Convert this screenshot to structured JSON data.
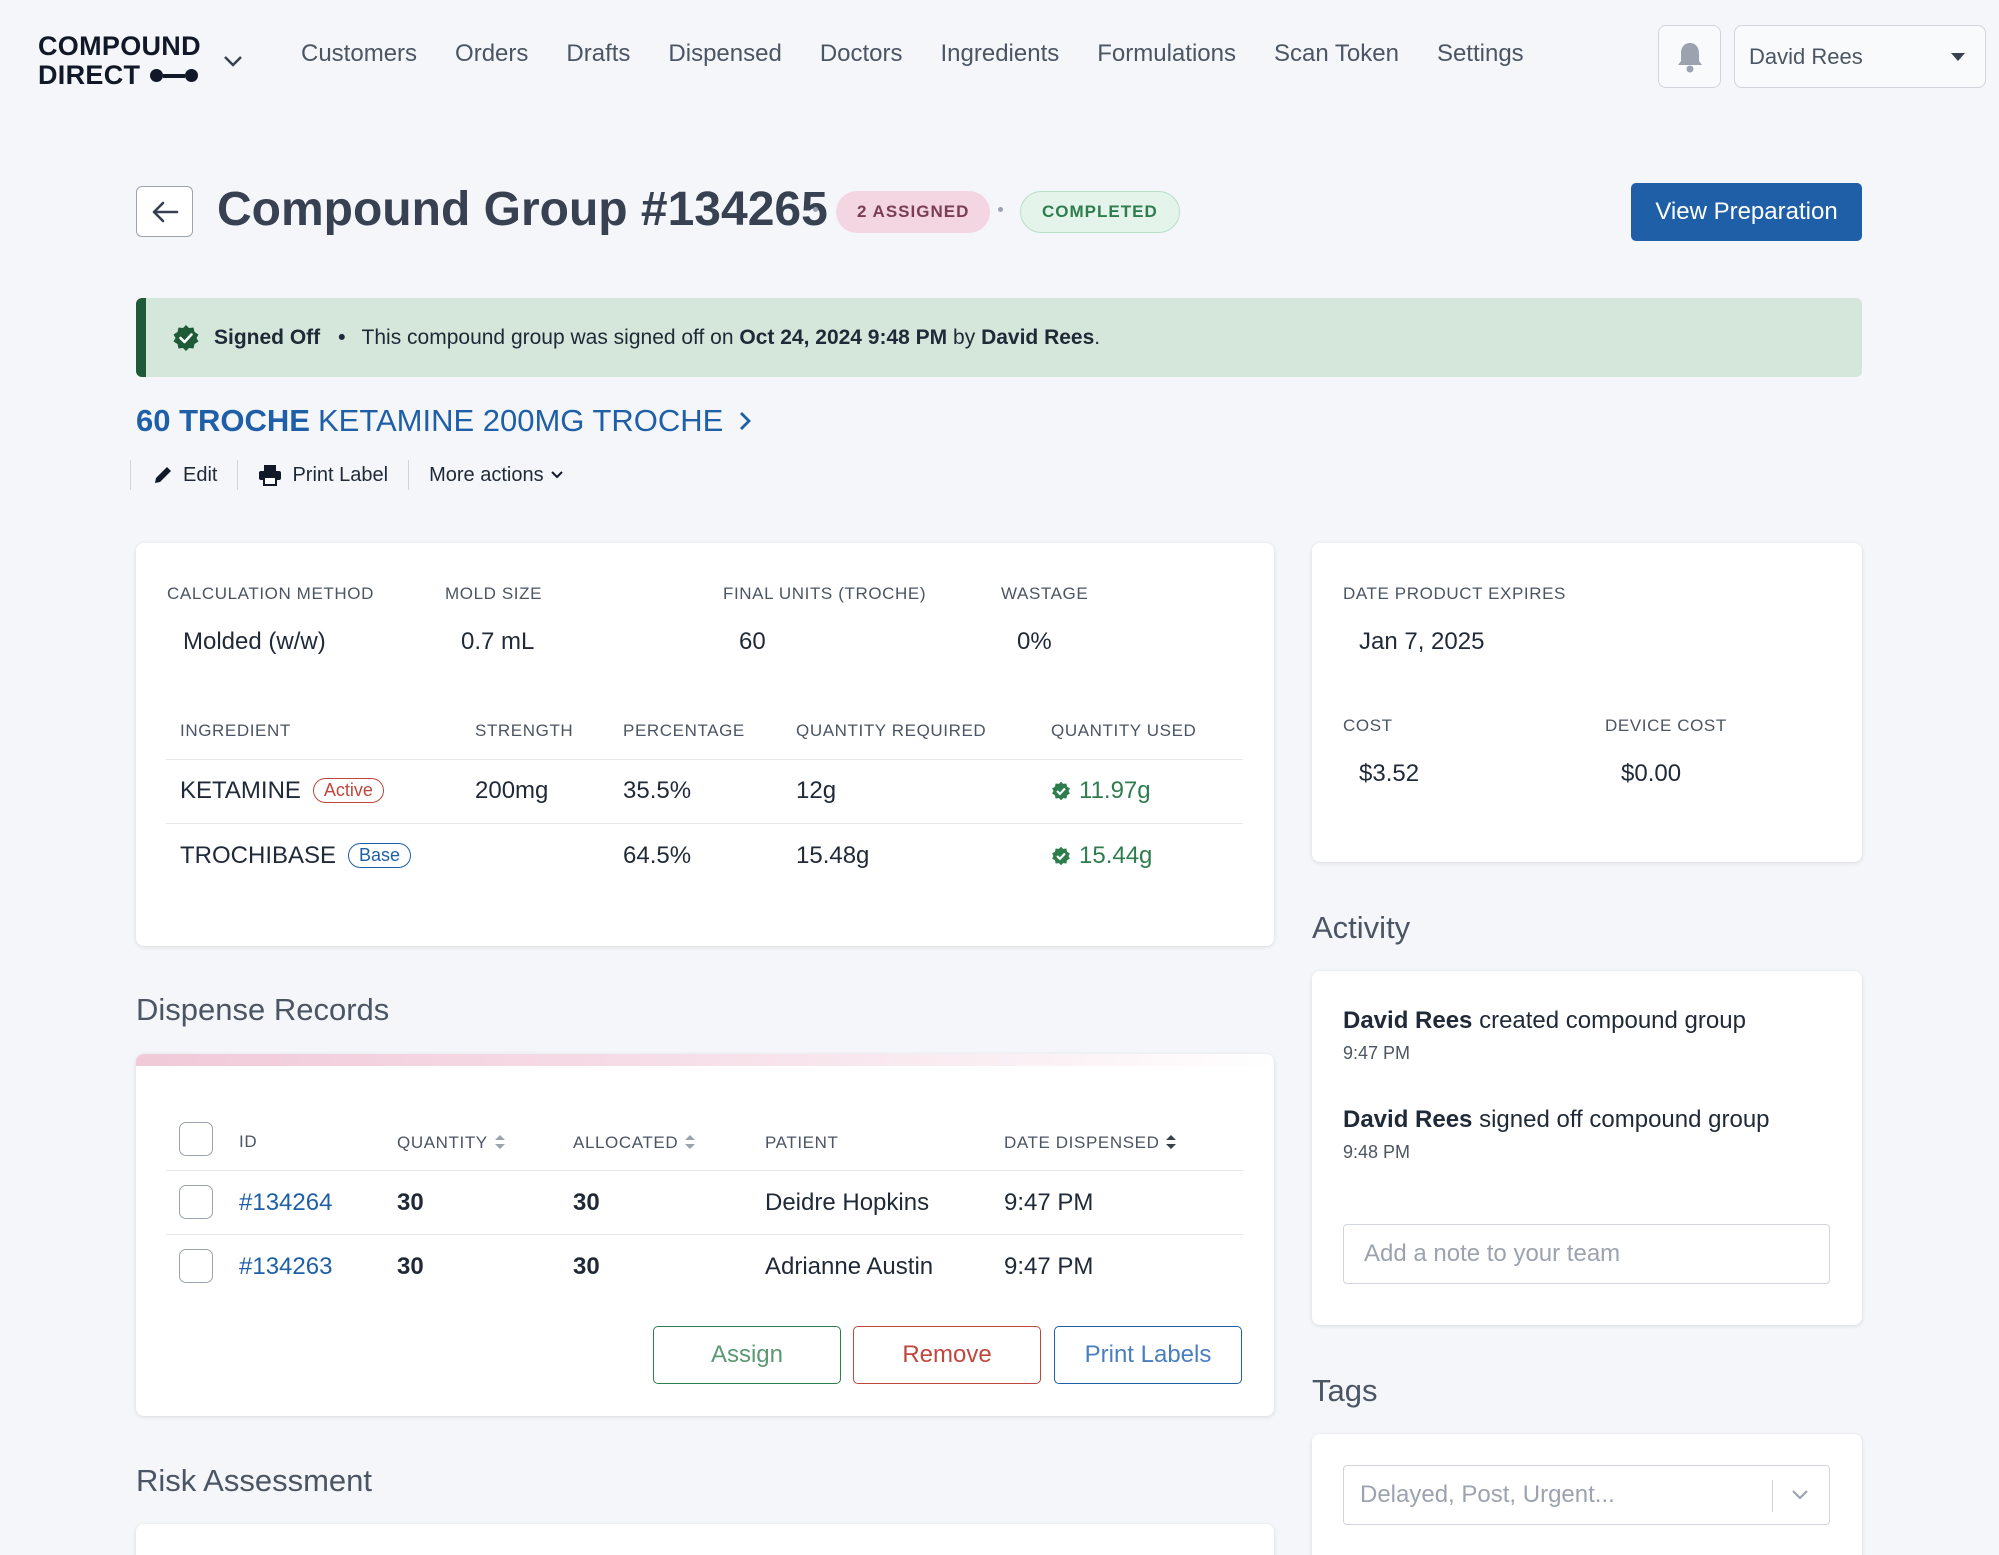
{
  "brand": {
    "line1": "COMPOUND",
    "line2": "DIRECT"
  },
  "nav": {
    "links": [
      "Customers",
      "Orders",
      "Drafts",
      "Dispensed",
      "Doctors",
      "Ingredients",
      "Formulations",
      "Scan Token",
      "Settings"
    ],
    "user": "David Rees"
  },
  "header": {
    "title": "Compound Group #134265",
    "assigned_badge": "2 ASSIGNED",
    "status_badge": "COMPLETED",
    "view_button": "View Preparation"
  },
  "banner": {
    "label": "Signed Off",
    "text_prefix": "This compound group was signed off on",
    "date": "Oct 24, 2024 9:48 PM",
    "by": "by",
    "user": "David Rees",
    "suffix": "."
  },
  "product": {
    "qty": "60 TROCHE",
    "name": "KETAMINE 200MG TROCHE"
  },
  "actions": {
    "edit": "Edit",
    "print": "Print Label",
    "more": "More actions"
  },
  "calc": {
    "method_label": "CALCULATION METHOD",
    "method": "Molded (w/w)",
    "mold_label": "MOLD SIZE",
    "mold": "0.7 mL",
    "units_label": "FINAL UNITS (TROCHE)",
    "units": "60",
    "wastage_label": "WASTAGE",
    "wastage": "0%"
  },
  "ingredients": {
    "headers": [
      "INGREDIENT",
      "STRENGTH",
      "PERCENTAGE",
      "QUANTITY REQUIRED",
      "QUANTITY USED"
    ],
    "rows": [
      {
        "name": "KETAMINE",
        "tag": "Active",
        "strength": "200mg",
        "percentage": "35.5%",
        "required": "12g",
        "used": "11.97g"
      },
      {
        "name": "TROCHIBASE",
        "tag": "Base",
        "strength": "",
        "percentage": "64.5%",
        "required": "15.48g",
        "used": "15.44g"
      }
    ]
  },
  "summary": {
    "expires_label": "DATE PRODUCT EXPIRES",
    "expires": "Jan 7, 2025",
    "cost_label": "COST",
    "cost": "$3.52",
    "device_label": "DEVICE COST",
    "device": "$0.00"
  },
  "dispense": {
    "title": "Dispense Records",
    "headers": [
      "ID",
      "QUANTITY",
      "ALLOCATED",
      "PATIENT",
      "DATE DISPENSED"
    ],
    "rows": [
      {
        "id": "#134264",
        "quantity": "30",
        "allocated": "30",
        "patient": "Deidre Hopkins",
        "date": "9:47 PM"
      },
      {
        "id": "#134263",
        "quantity": "30",
        "allocated": "30",
        "patient": "Adrianne Austin",
        "date": "9:47 PM"
      }
    ],
    "assign": "Assign",
    "remove": "Remove",
    "print": "Print Labels"
  },
  "risk": {
    "title": "Risk Assessment"
  },
  "activity": {
    "title": "Activity",
    "entries": [
      {
        "user": "David Rees",
        "action": "created compound group",
        "time": "9:47 PM"
      },
      {
        "user": "David Rees",
        "action": "signed off compound group",
        "time": "9:48 PM"
      }
    ],
    "note_placeholder": "Add a note to your team"
  },
  "tags": {
    "title": "Tags",
    "placeholder": "Delayed, Post, Urgent..."
  },
  "colors": {
    "primary": "#1f5fa8",
    "success": "#2e7d4e",
    "danger": "#c0473d",
    "banner_bg": "#d4e7da"
  }
}
